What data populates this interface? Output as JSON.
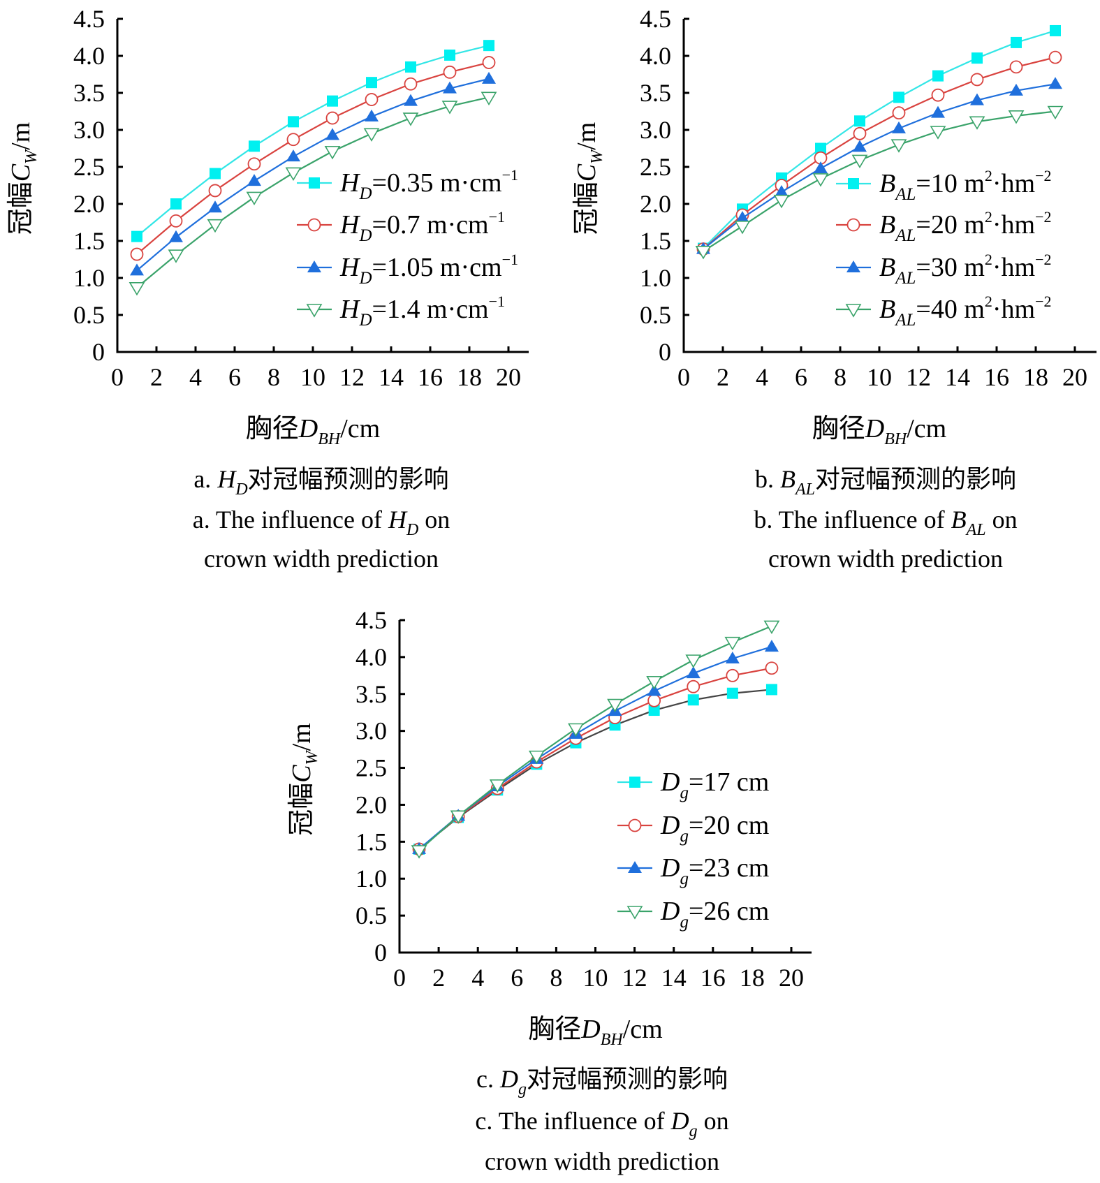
{
  "chart_data": [
    {
      "id": "a",
      "type": "line",
      "x": [
        1,
        3,
        5,
        7,
        9,
        11,
        13,
        15,
        17,
        19
      ],
      "xlim": [
        0,
        20
      ],
      "ylim": [
        0,
        4.5
      ],
      "x_ticks": [
        "0",
        "2",
        "4",
        "6",
        "8",
        "10",
        "12",
        "14",
        "16",
        "18",
        "20"
      ],
      "y_ticks": [
        "0",
        "0.5",
        "1.0",
        "1.5",
        "2.0",
        "2.5",
        "3.0",
        "3.5",
        "4.0",
        "4.5"
      ],
      "xlabel": {
        "prefix": "胸径",
        "var": "D",
        "sub": "BH",
        "suffix": "/cm"
      },
      "ylabel": {
        "prefix": "冠幅",
        "var": "C",
        "sub": "W",
        "suffix": "/m"
      },
      "legend_position": "right",
      "series": [
        {
          "name": "H_D=0.35 m·cm^-1",
          "var": "H",
          "sub": "D",
          "value": "=0.35 m·cm",
          "sup": "−1",
          "marker": "square",
          "color": "#00f0f0",
          "line_color": "#33e6e6",
          "values": [
            1.56,
            2.0,
            2.41,
            2.78,
            3.11,
            3.39,
            3.64,
            3.85,
            4.01,
            4.14
          ]
        },
        {
          "name": "H_D=0.7 m·cm^-1",
          "var": "H",
          "sub": "D",
          "value": "=0.7 m·cm",
          "sup": "−1",
          "marker": "circle-open",
          "color": "#d9433f",
          "line_color": "#d9433f",
          "values": [
            1.32,
            1.77,
            2.18,
            2.54,
            2.87,
            3.16,
            3.41,
            3.62,
            3.78,
            3.91
          ]
        },
        {
          "name": "H_D=1.05 m·cm^-1",
          "var": "H",
          "sub": "D",
          "value": "=1.05 m·cm",
          "sup": "−1",
          "marker": "triangle-up-filled",
          "color": "#1f6fdc",
          "line_color": "#1f6fdc",
          "values": [
            1.1,
            1.55,
            1.95,
            2.31,
            2.64,
            2.93,
            3.18,
            3.39,
            3.56,
            3.69
          ]
        },
        {
          "name": "H_D=1.4 m·cm^-1",
          "var": "H",
          "sub": "D",
          "value": "=1.4 m·cm",
          "sup": "−1",
          "marker": "triangle-down-open",
          "color": "#3aa36a",
          "line_color": "#3aa36a",
          "values": [
            0.87,
            1.31,
            1.72,
            2.09,
            2.42,
            2.71,
            2.95,
            3.16,
            3.32,
            3.44
          ]
        }
      ],
      "caption_cn": {
        "prefix": "a. ",
        "var": "H",
        "sub": "D",
        "suffix": "对冠幅预测的影响"
      },
      "caption_en_1": {
        "prefix": "a. The influence of ",
        "var": "H",
        "sub": "D",
        "suffix": " on"
      },
      "caption_en_2": "crown width prediction"
    },
    {
      "id": "b",
      "type": "line",
      "x": [
        1,
        3,
        5,
        7,
        9,
        11,
        13,
        15,
        17,
        19
      ],
      "xlim": [
        0,
        20
      ],
      "ylim": [
        0,
        4.5
      ],
      "x_ticks": [
        "0",
        "2",
        "4",
        "6",
        "8",
        "10",
        "12",
        "14",
        "16",
        "18",
        "20"
      ],
      "y_ticks": [
        "0",
        "0.5",
        "1.0",
        "1.5",
        "2.0",
        "2.5",
        "3.0",
        "3.5",
        "4.0",
        "4.5"
      ],
      "xlabel": {
        "prefix": "胸径",
        "var": "D",
        "sub": "BH",
        "suffix": "/cm"
      },
      "ylabel": {
        "prefix": "冠幅",
        "var": "C",
        "sub": "W",
        "suffix": "/m"
      },
      "legend_position": "right",
      "series": [
        {
          "name": "B_AL=10 m2·hm-2",
          "var": "B",
          "sub": "AL",
          "value": "=10 m",
          "sup": "2",
          "value2": "·hm",
          "sup2": "−2",
          "marker": "square",
          "color": "#00f0f0",
          "line_color": "#33e6e6",
          "values": [
            1.4,
            1.93,
            2.35,
            2.75,
            3.12,
            3.44,
            3.73,
            3.97,
            4.18,
            4.34
          ]
        },
        {
          "name": "B_AL=20 m2·hm-2",
          "var": "B",
          "sub": "AL",
          "value": "=20 m",
          "sup": "2",
          "value2": "·hm",
          "sup2": "−2",
          "marker": "circle-open",
          "color": "#d9433f",
          "line_color": "#d9433f",
          "values": [
            1.39,
            1.85,
            2.25,
            2.62,
            2.95,
            3.23,
            3.47,
            3.68,
            3.85,
            3.98
          ]
        },
        {
          "name": "B_AL=30 m2·hm-2",
          "var": "B",
          "sub": "AL",
          "value": "=30 m",
          "sup": "2",
          "value2": "·hm",
          "sup2": "−2",
          "marker": "triangle-up-filled",
          "color": "#1f6fdc",
          "line_color": "#1f6fdc",
          "values": [
            1.39,
            1.81,
            2.16,
            2.48,
            2.77,
            3.02,
            3.23,
            3.4,
            3.53,
            3.62
          ]
        },
        {
          "name": "B_AL=40 m2·hm-2",
          "var": "B",
          "sub": "AL",
          "value": "=40 m",
          "sup": "2",
          "value2": "·hm",
          "sup2": "−2",
          "marker": "triangle-down-open",
          "color": "#3aa36a",
          "line_color": "#3aa36a",
          "values": [
            1.36,
            1.7,
            2.05,
            2.34,
            2.59,
            2.8,
            2.98,
            3.11,
            3.19,
            3.25
          ]
        }
      ],
      "caption_cn": {
        "prefix": "b. ",
        "var": "B",
        "sub": "AL",
        "suffix": "对冠幅预测的影响"
      },
      "caption_en_1": {
        "prefix": "b. The influence of ",
        "var": "B",
        "sub": "AL",
        "suffix": " on"
      },
      "caption_en_2": "crown width prediction"
    },
    {
      "id": "c",
      "type": "line",
      "x": [
        1,
        3,
        5,
        7,
        9,
        11,
        13,
        15,
        17,
        19
      ],
      "xlim": [
        0,
        20
      ],
      "ylim": [
        0,
        4.5
      ],
      "x_ticks": [
        "0",
        "2",
        "4",
        "6",
        "8",
        "10",
        "12",
        "14",
        "16",
        "18",
        "20"
      ],
      "y_ticks": [
        "0",
        "0.5",
        "1.0",
        "1.5",
        "2.0",
        "2.5",
        "3.0",
        "3.5",
        "4.0",
        "4.5"
      ],
      "xlabel": {
        "prefix": "胸径",
        "var": "D",
        "sub": "BH",
        "suffix": "/cm"
      },
      "ylabel": {
        "prefix": "冠幅",
        "var": "C",
        "sub": "W",
        "suffix": "/m"
      },
      "legend_position": "right",
      "series": [
        {
          "name": "D_g=17 cm",
          "var": "D",
          "sub": "g",
          "value": "=17 cm",
          "marker": "square",
          "color": "#00f0f0",
          "line_color": "#444444",
          "legend_line_color": "#33e6e6",
          "values": [
            1.4,
            1.83,
            2.2,
            2.55,
            2.84,
            3.08,
            3.28,
            3.42,
            3.51,
            3.56
          ]
        },
        {
          "name": "D_g=20 cm",
          "var": "D",
          "sub": "g",
          "value": "=20 cm",
          "marker": "circle-open",
          "color": "#d9433f",
          "line_color": "#d9433f",
          "values": [
            1.4,
            1.84,
            2.22,
            2.58,
            2.9,
            3.18,
            3.41,
            3.6,
            3.75,
            3.85
          ]
        },
        {
          "name": "D_g=23 cm",
          "var": "D",
          "sub": "g",
          "value": "=23 cm",
          "marker": "triangle-up-filled",
          "color": "#1f6fdc",
          "line_color": "#1f6fdc",
          "values": [
            1.4,
            1.85,
            2.25,
            2.62,
            2.96,
            3.27,
            3.54,
            3.78,
            3.98,
            4.14
          ]
        },
        {
          "name": "D_g=26 cm",
          "var": "D",
          "sub": "g",
          "value": "=26 cm",
          "marker": "triangle-down-open",
          "color": "#3aa36a",
          "line_color": "#3aa36a",
          "values": [
            1.38,
            1.85,
            2.27,
            2.66,
            3.03,
            3.36,
            3.67,
            3.96,
            4.2,
            4.42
          ]
        }
      ],
      "caption_cn": {
        "prefix": "c. ",
        "var": "D",
        "sub": "g",
        "suffix": "对冠幅预测的影响"
      },
      "caption_en_1": {
        "prefix": "c. The influence of ",
        "var": "D",
        "sub": "g",
        "suffix": " on"
      },
      "caption_en_2": "crown width prediction"
    }
  ]
}
